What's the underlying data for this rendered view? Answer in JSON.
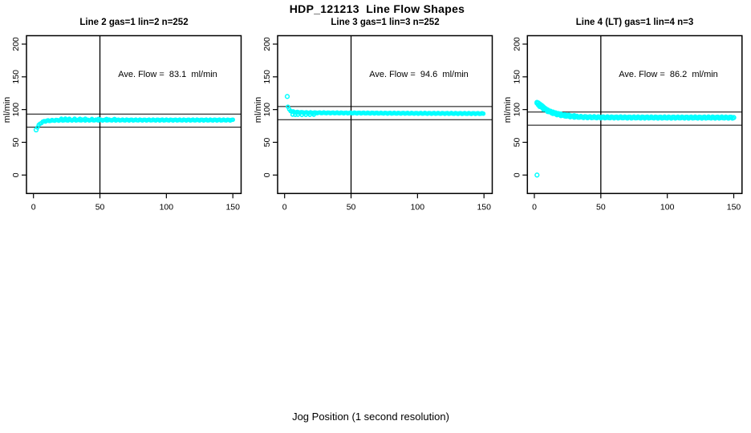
{
  "figure": {
    "title": "HDP_121213  Line Flow Shapes",
    "x_axis_label": "Jog Position (1 second resolution)"
  },
  "chart_data": [
    {
      "type": "scatter",
      "title": "Line 2 gas=1 lin=2 n=252",
      "annotation": "Ave. Flow =  83.1  ml/min",
      "ave_flow_ml_min": 83.1,
      "ylabel": "ml/min",
      "x_ticks": [
        0,
        50,
        100,
        150
      ],
      "y_ticks": [
        0,
        50,
        100,
        150,
        200
      ],
      "xlim": [
        -5,
        156
      ],
      "ylim": [
        -29,
        213
      ],
      "grid": false,
      "marker_color": "#00ffff",
      "ref_lines_y": [
        93.1,
        73.1
      ],
      "vline_x": 50,
      "curve_keypoints": [
        [
          3,
          73
        ],
        [
          4,
          76
        ],
        [
          5,
          78.5
        ],
        [
          6,
          80
        ],
        [
          7,
          81
        ],
        [
          8,
          82
        ],
        [
          10,
          82.8
        ],
        [
          13,
          83.3
        ],
        [
          16,
          83.6
        ],
        [
          20,
          83.8
        ],
        [
          30,
          84
        ],
        [
          50,
          84
        ],
        [
          75,
          84
        ],
        [
          100,
          84
        ],
        [
          125,
          84
        ],
        [
          150,
          84
        ]
      ],
      "outlier_points": [
        [
          2,
          69
        ]
      ],
      "extra_points": [
        [
          21,
          86
        ],
        [
          24,
          86.2
        ],
        [
          27,
          85.9
        ],
        [
          31,
          86.1
        ],
        [
          35,
          85.9
        ],
        [
          39,
          86
        ],
        [
          44,
          85.7
        ],
        [
          49,
          85.8
        ],
        [
          55,
          85.6
        ],
        [
          61,
          85.6
        ]
      ]
    },
    {
      "type": "scatter",
      "title": "Line 3 gas=1 lin=3 n=252",
      "annotation": "Ave. Flow =  94.6  ml/min",
      "ave_flow_ml_min": 94.6,
      "ylabel": "ml/min",
      "x_ticks": [
        0,
        50,
        100,
        150
      ],
      "y_ticks": [
        0,
        50,
        100,
        150,
        200
      ],
      "xlim": [
        -5,
        156
      ],
      "ylim": [
        -29,
        213
      ],
      "grid": false,
      "marker_color": "#00ffff",
      "ref_lines_y": [
        104.6,
        84.6
      ],
      "vline_x": 50,
      "curve_keypoints": [
        [
          2.5,
          104
        ],
        [
          3,
          101
        ],
        [
          4,
          99
        ],
        [
          5,
          97.5
        ],
        [
          6,
          96.8
        ],
        [
          8,
          96.2
        ],
        [
          10,
          95.8
        ],
        [
          15,
          95.4
        ],
        [
          20,
          95.2
        ],
        [
          30,
          95
        ],
        [
          50,
          94.8
        ],
        [
          75,
          94.5
        ],
        [
          100,
          94.3
        ],
        [
          125,
          94.1
        ],
        [
          150,
          93.9
        ]
      ],
      "outlier_points": [
        [
          2,
          120
        ]
      ],
      "extra_points": [
        [
          6,
          92.3
        ],
        [
          8,
          92
        ],
        [
          10,
          92.2
        ],
        [
          13,
          91.9
        ],
        [
          16,
          92.1
        ],
        [
          19,
          92
        ],
        [
          22,
          92.2
        ]
      ]
    },
    {
      "type": "scatter",
      "title": "Line 4 (LT) gas=1 lin=4 n=3",
      "annotation": "Ave. Flow =  86.2  ml/min",
      "ave_flow_ml_min": 86.2,
      "ylabel": "ml/min",
      "x_ticks": [
        0,
        50,
        100,
        150
      ],
      "y_ticks": [
        0,
        50,
        100,
        150,
        200
      ],
      "xlim": [
        -5,
        156
      ],
      "ylim": [
        -29,
        213
      ],
      "grid": false,
      "marker_color": "#00ffff",
      "ref_lines_y": [
        96.2,
        76.2
      ],
      "vline_x": 50,
      "curve_keypoints": [
        [
          2,
          109
        ],
        [
          3,
          107.5
        ],
        [
          4,
          105.5
        ],
        [
          5,
          104
        ],
        [
          6,
          102.5
        ],
        [
          8,
          100
        ],
        [
          10,
          97.8
        ],
        [
          12,
          96
        ],
        [
          14,
          94.6
        ],
        [
          16,
          93.4
        ],
        [
          18,
          92.4
        ],
        [
          20,
          91.6
        ],
        [
          23,
          90.6
        ],
        [
          26,
          89.9
        ],
        [
          30,
          89.2
        ],
        [
          35,
          88.7
        ],
        [
          40,
          88.4
        ],
        [
          50,
          88.1
        ],
        [
          60,
          88
        ],
        [
          80,
          87.9
        ],
        [
          100,
          87.8
        ],
        [
          125,
          87.8
        ],
        [
          150,
          87.8
        ]
      ],
      "outlier_points": [
        [
          2,
          0
        ]
      ],
      "extra_points": [
        [
          2,
          111
        ],
        [
          3,
          110
        ],
        [
          4,
          108.5
        ],
        [
          5,
          107
        ],
        [
          6,
          105.5
        ],
        [
          7,
          103.5
        ],
        [
          8,
          102
        ],
        [
          9,
          100.5
        ],
        [
          10,
          99.5
        ],
        [
          12,
          97.7
        ],
        [
          14,
          96.3
        ],
        [
          16,
          95
        ],
        [
          18,
          94
        ],
        [
          20,
          93.2
        ],
        [
          23,
          92.2
        ],
        [
          26,
          91.5
        ],
        [
          30,
          90.8
        ]
      ]
    }
  ]
}
